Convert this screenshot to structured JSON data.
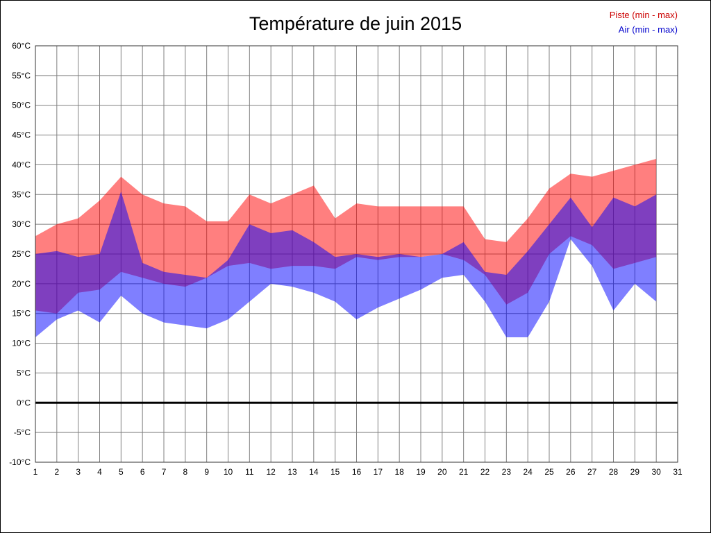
{
  "chart_data": {
    "type": "area",
    "title": "Température de juin 2015",
    "xlabel": "",
    "ylabel": "",
    "xlim": [
      1,
      31
    ],
    "ylim": [
      -10,
      60
    ],
    "y_tick_step": 5,
    "y_unit": "°C",
    "grid": true,
    "zero_line_at": 0,
    "legend_position": "top-right",
    "x_ticks": [
      1,
      2,
      3,
      4,
      5,
      6,
      7,
      8,
      9,
      10,
      11,
      12,
      13,
      14,
      15,
      16,
      17,
      18,
      19,
      20,
      21,
      22,
      23,
      24,
      25,
      26,
      27,
      28,
      29,
      30,
      31
    ],
    "days": [
      1,
      2,
      3,
      4,
      5,
      6,
      7,
      8,
      9,
      10,
      11,
      12,
      13,
      14,
      15,
      16,
      17,
      18,
      19,
      20,
      21,
      22,
      23,
      24,
      25,
      26,
      27,
      28,
      29,
      30
    ],
    "series": [
      {
        "name": "Piste (min - max)",
        "color": "#ff0000",
        "legend_color": "#cc0000",
        "max": [
          28,
          30,
          31,
          34,
          38,
          35,
          33.5,
          33,
          30.5,
          30.5,
          35,
          33.5,
          35,
          36.5,
          31,
          33.5,
          33,
          33,
          33,
          33,
          33,
          27.5,
          27,
          31,
          36,
          38.5,
          38,
          39,
          40,
          41
        ],
        "min": [
          15.5,
          15,
          18.5,
          19,
          22,
          21,
          20,
          19.5,
          21,
          23,
          23.5,
          22.5,
          23,
          23,
          22.5,
          24.5,
          24,
          24.5,
          24.5,
          25,
          24,
          21.5,
          16.5,
          18.5,
          25,
          28,
          26.5,
          22.5,
          23.5,
          24.5
        ]
      },
      {
        "name": "Air (min - max)",
        "color": "#0000ff",
        "legend_color": "#0000cc",
        "max": [
          25,
          25.5,
          24.5,
          25,
          35.5,
          23.5,
          22,
          21.5,
          21,
          24,
          30,
          28.5,
          29,
          27,
          24.5,
          25,
          24.5,
          25,
          24.5,
          25,
          27,
          22,
          21.5,
          25.5,
          30,
          34.5,
          29.5,
          34.5,
          33,
          35
        ],
        "min": [
          11,
          14,
          15.5,
          13.5,
          18,
          15,
          13.5,
          13,
          12.5,
          14,
          17,
          20,
          19.5,
          18.5,
          17,
          14,
          16,
          17.5,
          19,
          21,
          21.5,
          17,
          11,
          11,
          17,
          27.5,
          23,
          15.5,
          20,
          17
        ]
      }
    ]
  }
}
